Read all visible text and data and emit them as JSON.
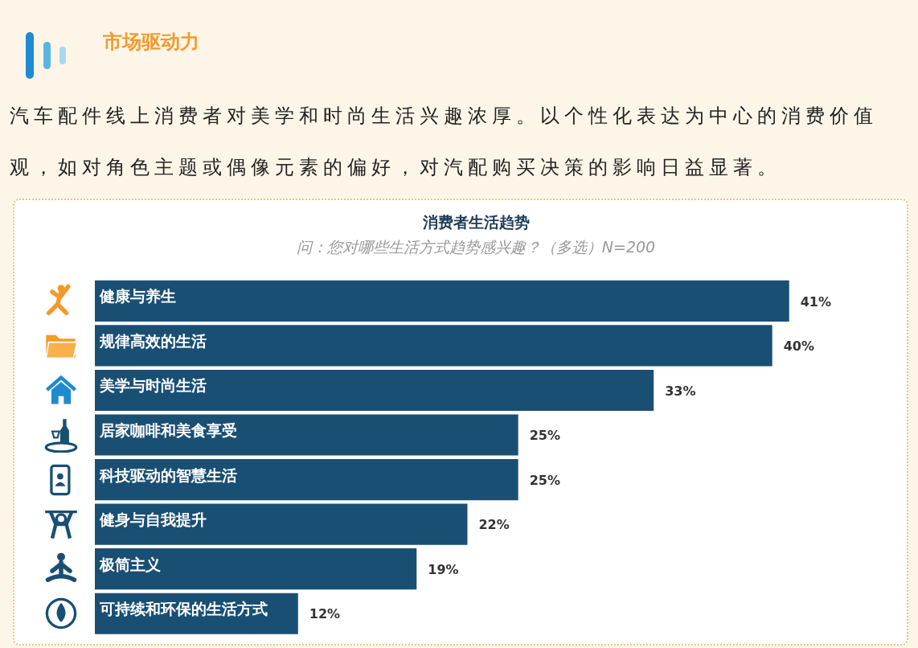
{
  "chart_data": {
    "type": "bar",
    "orientation": "horizontal",
    "title": "消费者生活趋势",
    "subtitle": "问：您对哪些生活方式趋势感兴趣？（多选）N=200",
    "annotations": [
      "市场驱动力",
      "汽车配件线上消费者对美学和时尚生活兴趣浓厚。以个性化表达为中心的消费价值观，如对角色主题或偶像元素的偏好，对汽配购买决策的影响日益显著。"
    ],
    "categories": [
      "健康与养生",
      "规律高效的生活",
      "美学与时尚生活",
      "居家咖啡和美食享受",
      "科技驱动的智慧生活",
      "健身与自我提升",
      "极简主义",
      "可持续和环保的生活方式"
    ],
    "values": [
      41,
      40,
      33,
      25,
      25,
      22,
      19,
      12
    ],
    "value_labels": [
      "41%",
      "40%",
      "33%",
      "25%",
      "25%",
      "22%",
      "19%",
      "12%"
    ],
    "color": "#1a4f74",
    "tick_labels": false,
    "legend": false
  }
}
